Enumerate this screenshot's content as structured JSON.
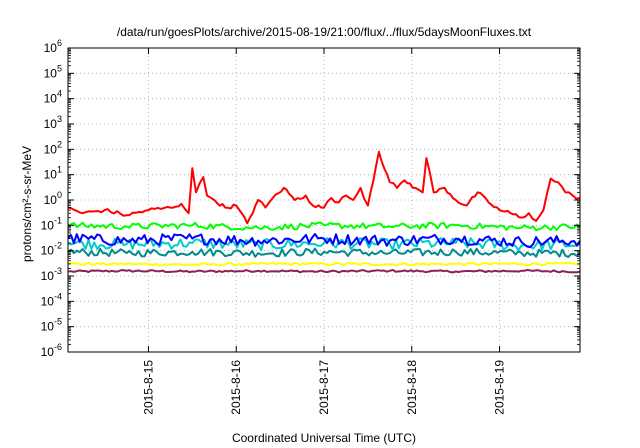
{
  "chart_data": {
    "type": "line",
    "title": "/data/run/goesPlots/archive/2015-08-19/21:00/flux/../flux/5daysMoonFluxes.txt",
    "xlabel": "Coordinated Universal Time (UTC)",
    "ylabel": "protons/cm²-s-sr-MeV",
    "y_scale": "log",
    "ylim": [
      1e-06,
      1000000.0
    ],
    "y_ticks": [
      {
        "value": 1e-06,
        "base": "10",
        "exp": "-6"
      },
      {
        "value": 1e-05,
        "base": "10",
        "exp": "-5"
      },
      {
        "value": 0.0001,
        "base": "10",
        "exp": "-4"
      },
      {
        "value": 0.001,
        "base": "10",
        "exp": "-3"
      },
      {
        "value": 0.01,
        "base": "10",
        "exp": "-2"
      },
      {
        "value": 0.1,
        "base": "10",
        "exp": "-1"
      },
      {
        "value": 1.0,
        "base": "10",
        "exp": "0"
      },
      {
        "value": 10.0,
        "base": "10",
        "exp": "1"
      },
      {
        "value": 100.0,
        "base": "10",
        "exp": "2"
      },
      {
        "value": 1000.0,
        "base": "10",
        "exp": "3"
      },
      {
        "value": 10000.0,
        "base": "10",
        "exp": "4"
      },
      {
        "value": 100000.0,
        "base": "10",
        "exp": "5"
      },
      {
        "value": 1000000.0,
        "base": "10",
        "exp": "6"
      }
    ],
    "xlim": [
      "2015-08-14T02:00",
      "2015-08-19T22:00"
    ],
    "x_ticks": [
      "2015-8-15",
      "2015-8-16",
      "2015-8-17",
      "2015-8-18",
      "2015-8-19"
    ],
    "grid": true,
    "legend": "none",
    "series": [
      {
        "color": "#ff0000",
        "x": [
          "2015-08-14T02:00",
          "2015-08-14T06:00",
          "2015-08-14T12:00",
          "2015-08-14T18:00",
          "2015-08-15T00:00",
          "2015-08-15T06:00",
          "2015-08-15T09:00",
          "2015-08-15T11:00",
          "2015-08-15T12:00",
          "2015-08-15T13:00",
          "2015-08-15T15:00",
          "2015-08-15T16:00",
          "2015-08-15T18:00",
          "2015-08-15T21:00",
          "2015-08-16T00:00",
          "2015-08-16T03:00",
          "2015-08-16T06:00",
          "2015-08-16T08:00",
          "2015-08-16T10:00",
          "2015-08-16T13:00",
          "2015-08-16T16:00",
          "2015-08-16T19:00",
          "2015-08-16T21:00",
          "2015-08-17T00:00",
          "2015-08-17T02:00",
          "2015-08-17T04:00",
          "2015-08-17T06:00",
          "2015-08-17T08:00",
          "2015-08-17T10:00",
          "2015-08-17T12:00",
          "2015-08-17T15:00",
          "2015-08-17T18:00",
          "2015-08-17T20:00",
          "2015-08-17T22:00",
          "2015-08-18T01:00",
          "2015-08-18T03:00",
          "2015-08-18T04:00",
          "2015-08-18T06:00",
          "2015-08-18T09:00",
          "2015-08-18T12:00",
          "2015-08-18T15:00",
          "2015-08-18T18:00",
          "2015-08-18T21:00",
          "2015-08-19T00:00",
          "2015-08-19T03:00",
          "2015-08-19T06:00",
          "2015-08-19T08:00",
          "2015-08-19T10:00",
          "2015-08-19T12:00",
          "2015-08-19T14:00",
          "2015-08-19T16:00",
          "2015-08-19T18:00",
          "2015-08-19T20:00",
          "2015-08-19T22:00"
        ],
        "y": [
          0.5,
          0.3,
          0.4,
          0.25,
          0.4,
          0.5,
          0.7,
          0.3,
          18,
          2,
          8,
          1.5,
          1,
          0.5,
          0.6,
          0.12,
          1,
          0.5,
          1.2,
          3,
          1,
          1.5,
          0.6,
          0.5,
          1.2,
          0.8,
          1.5,
          1,
          3,
          0.6,
          80,
          5,
          3,
          6,
          3,
          2,
          45,
          2,
          3,
          1,
          0.6,
          2,
          0.8,
          0.4,
          0.3,
          0.2,
          0.3,
          0.15,
          0.4,
          7,
          5,
          2,
          1.5,
          1.2
        ]
      },
      {
        "color": "#00ff00",
        "x": [
          "2015-08-14T02:00",
          "2015-08-14T18:00",
          "2015-08-15T12:00",
          "2015-08-16T06:00",
          "2015-08-17T00:00",
          "2015-08-17T18:00",
          "2015-08-18T12:00",
          "2015-08-19T06:00",
          "2015-08-19T22:00"
        ],
        "y": [
          0.1,
          0.09,
          0.1,
          0.08,
          0.1,
          0.09,
          0.1,
          0.08,
          0.09
        ]
      },
      {
        "color": "#00cccc",
        "x": [
          "2015-08-14T02:00",
          "2015-08-14T18:00",
          "2015-08-15T12:00",
          "2015-08-16T06:00",
          "2015-08-17T00:00",
          "2015-08-17T18:00",
          "2015-08-18T12:00",
          "2015-08-19T06:00",
          "2015-08-19T22:00"
        ],
        "y": [
          0.02,
          0.018,
          0.02,
          0.017,
          0.02,
          0.018,
          0.02,
          0.016,
          0.018
        ]
      },
      {
        "color": "#0000ff",
        "x": [
          "2015-08-14T02:00",
          "2015-08-14T18:00",
          "2015-08-15T12:00",
          "2015-08-16T06:00",
          "2015-08-17T00:00",
          "2015-08-17T18:00",
          "2015-08-18T12:00",
          "2015-08-19T06:00",
          "2015-08-19T22:00"
        ],
        "y": [
          0.03,
          0.025,
          0.03,
          0.025,
          0.03,
          0.025,
          0.03,
          0.022,
          0.025
        ]
      },
      {
        "color": "#008b8b",
        "x": [
          "2015-08-14T02:00",
          "2015-08-14T18:00",
          "2015-08-15T12:00",
          "2015-08-16T06:00",
          "2015-08-17T00:00",
          "2015-08-17T18:00",
          "2015-08-18T12:00",
          "2015-08-19T06:00",
          "2015-08-19T22:00"
        ],
        "y": [
          0.009,
          0.008,
          0.009,
          0.008,
          0.009,
          0.008,
          0.009,
          0.008,
          0.008
        ]
      },
      {
        "color": "#ffff00",
        "x": [
          "2015-08-14T02:00",
          "2015-08-14T18:00",
          "2015-08-15T12:00",
          "2015-08-16T06:00",
          "2015-08-17T00:00",
          "2015-08-17T18:00",
          "2015-08-18T12:00",
          "2015-08-19T06:00",
          "2015-08-19T22:00"
        ],
        "y": [
          0.003,
          0.003,
          0.0028,
          0.003,
          0.003,
          0.0029,
          0.003,
          0.003,
          0.003
        ]
      },
      {
        "color": "#8b2252",
        "x": [
          "2015-08-14T02:00",
          "2015-08-14T18:00",
          "2015-08-15T12:00",
          "2015-08-16T06:00",
          "2015-08-17T00:00",
          "2015-08-17T18:00",
          "2015-08-18T12:00",
          "2015-08-19T06:00",
          "2015-08-19T22:00"
        ],
        "y": [
          0.0015,
          0.0016,
          0.0015,
          0.0016,
          0.0015,
          0.0016,
          0.0015,
          0.0016,
          0.0015
        ]
      }
    ]
  }
}
